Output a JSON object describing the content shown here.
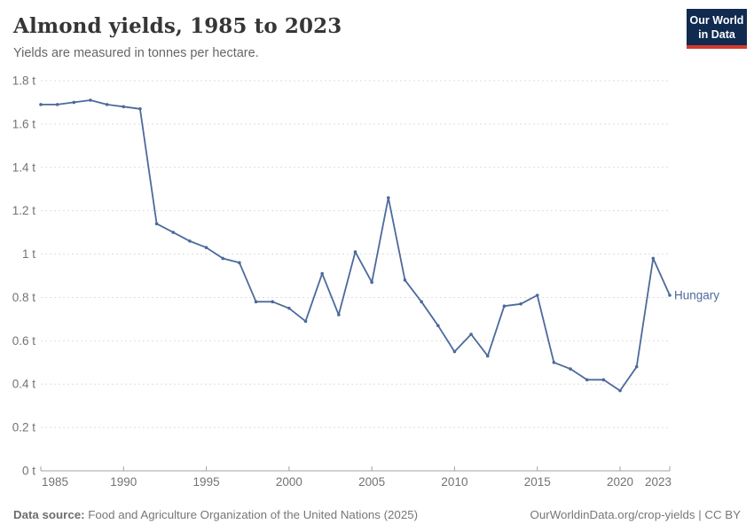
{
  "header": {
    "title": "Almond yields, 1985 to 2023",
    "subtitle": "Yields are measured in tonnes per hectare.",
    "logo": {
      "line1": "Our World",
      "line2": "in Data"
    }
  },
  "chart_data": {
    "type": "line",
    "title": "Almond yields, 1985 to 2023",
    "subtitle": "Yields are measured in tonnes per hectare.",
    "unit": "tonnes per hectare",
    "xlim": [
      1985,
      2023
    ],
    "ylim": [
      0,
      1.8
    ],
    "grid": "horizontal-dashed",
    "legend_position": "end-of-line-label",
    "xticks": [
      1985,
      1990,
      1995,
      2000,
      2005,
      2010,
      2015,
      2020,
      2023
    ],
    "yticks": [
      0,
      0.2,
      0.4,
      0.6,
      0.8,
      1.0,
      1.2,
      1.4,
      1.6,
      1.8
    ],
    "ytick_labels": [
      "0 t",
      "0.2 t",
      "0.4 t",
      "0.6 t",
      "0.8 t",
      "1 t",
      "1.2 t",
      "1.4 t",
      "1.6 t",
      "1.8 t"
    ],
    "colors": {
      "line": "#4C6A9C",
      "series_label": "#4C6A9C",
      "grid": "#dedede",
      "axis": "#a3a3a3",
      "tick_text": "#737373"
    },
    "series": [
      {
        "name": "Hungary",
        "x": [
          1985,
          1986,
          1987,
          1988,
          1989,
          1990,
          1991,
          1992,
          1993,
          1994,
          1995,
          1996,
          1997,
          1998,
          1999,
          2000,
          2001,
          2002,
          2003,
          2004,
          2005,
          2006,
          2007,
          2008,
          2009,
          2010,
          2011,
          2012,
          2013,
          2014,
          2015,
          2016,
          2017,
          2018,
          2019,
          2020,
          2021,
          2022,
          2023
        ],
        "values": [
          1.69,
          1.69,
          1.7,
          1.71,
          1.69,
          1.68,
          1.67,
          1.14,
          1.1,
          1.06,
          1.03,
          0.98,
          0.96,
          0.78,
          0.78,
          0.75,
          0.69,
          0.91,
          0.72,
          1.01,
          0.87,
          1.26,
          0.88,
          0.78,
          0.67,
          0.55,
          0.63,
          0.53,
          0.76,
          0.77,
          0.81,
          0.5,
          0.47,
          0.42,
          0.42,
          0.37,
          0.48,
          0.98,
          0.81
        ]
      }
    ]
  },
  "footer": {
    "source_label": "Data source:",
    "source_text": " Food and Agriculture Organization of the United Nations (2025)",
    "credit": "OurWorldinData.org/crop-yields | CC BY"
  }
}
